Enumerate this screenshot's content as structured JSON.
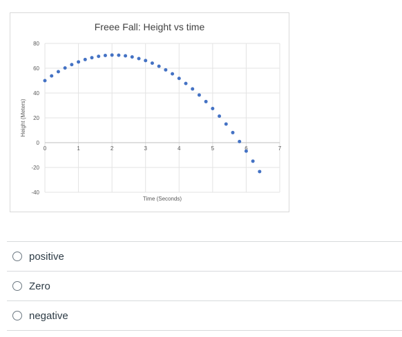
{
  "chart_data": {
    "type": "scatter",
    "title": "Freee Fall: Height vs time",
    "xlabel": "Time (Seconds)",
    "ylabel": "Height (Meters)",
    "xlim": [
      0,
      7
    ],
    "ylim": [
      -40,
      80
    ],
    "x_ticks": [
      "0",
      "1",
      "2",
      "3",
      "4",
      "5",
      "6",
      "7"
    ],
    "y_ticks": [
      "80",
      "60",
      "40",
      "20",
      "0",
      "-20",
      "-40"
    ],
    "grid": true,
    "marker_color": "#4472c4",
    "series": [
      {
        "x": [
          0,
          0.2,
          0.4,
          0.6,
          0.8,
          1.0,
          1.2,
          1.4,
          1.6,
          1.8,
          2.0,
          2.2,
          2.4,
          2.6,
          2.8,
          3.0,
          3.2,
          3.4,
          3.6,
          3.8,
          4.0,
          4.2,
          4.4,
          4.6,
          4.8,
          5.0,
          5.2,
          5.4,
          5.6,
          5.8,
          6.0,
          6.2,
          6.4
        ],
        "y": [
          50,
          53.8,
          57.2,
          60.2,
          62.9,
          65.1,
          67.0,
          68.5,
          69.6,
          70.3,
          70.6,
          70.5,
          70.0,
          69.1,
          67.8,
          66.2,
          64.1,
          61.6,
          58.7,
          55.5,
          51.8,
          47.7,
          43.3,
          38.4,
          33.1,
          27.5,
          21.4,
          15.0,
          8.1,
          0.9,
          -6.8,
          -14.9,
          -23.3
        ]
      }
    ]
  },
  "answers": [
    {
      "label": "positive"
    },
    {
      "label": "Zero"
    },
    {
      "label": "negative"
    }
  ]
}
